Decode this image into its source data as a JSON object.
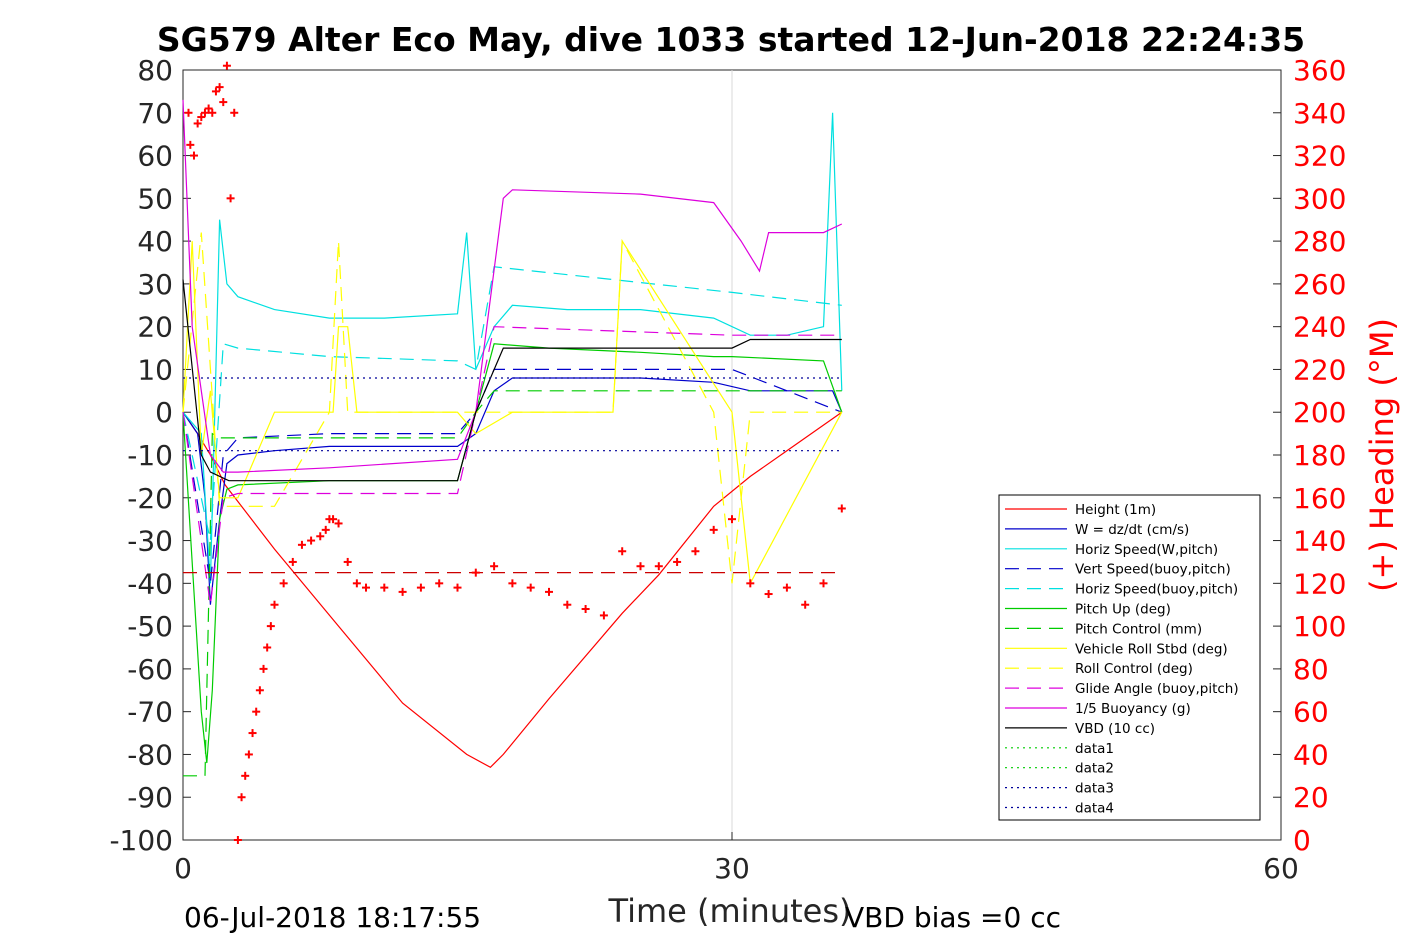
{
  "chart_data": {
    "type": "line",
    "title": "SG579 Alter Eco May, dive 1033 started 12-Jun-2018 22:24:35",
    "xlabel": "Time (minutes)",
    "ylabel_right": "(+) Heading (°M)",
    "footer_left": "06-Jul-2018 18:17:55",
    "footer_right": "VBD bias =0 cc",
    "xlim": [
      0,
      60
    ],
    "ylim_left": [
      -100,
      80
    ],
    "ylim_right": [
      0,
      360
    ],
    "x_ticks": [
      0,
      30,
      60
    ],
    "y_ticks_left": [
      80,
      70,
      60,
      50,
      40,
      30,
      20,
      10,
      0,
      -10,
      -20,
      -30,
      -40,
      -50,
      -60,
      -70,
      -80,
      -90,
      -100
    ],
    "y_ticks_right": [
      360,
      340,
      320,
      300,
      280,
      260,
      240,
      220,
      200,
      180,
      160,
      140,
      120,
      100,
      80,
      60,
      40,
      20,
      0
    ],
    "grid": "x-only at 30",
    "legend_position": "bottom-right",
    "series": [
      {
        "name": "Height (1m)",
        "color": "#ff0000",
        "style": "solid",
        "x": [
          0,
          0.8,
          1.5,
          2.3,
          5,
          8.5,
          12,
          15.5,
          16.8,
          17.5,
          20,
          23,
          24,
          26,
          29,
          31,
          33,
          36
        ],
        "y": [
          0,
          -5,
          -10,
          -17,
          -32,
          -50,
          -68,
          -80,
          -83,
          -80,
          -67,
          -52,
          -47,
          -38,
          -22,
          -15,
          -9,
          0
        ]
      },
      {
        "name": "W = dz/dt (cm/s)",
        "color": "#0000cc",
        "style": "solid",
        "x": [
          0,
          0.8,
          1.2,
          1.5,
          2.0,
          2.4,
          3,
          5,
          8,
          11,
          15,
          16,
          17,
          18,
          21,
          25,
          29,
          31,
          33,
          35.5,
          36
        ],
        "y": [
          0,
          -5,
          -20,
          -45,
          -25,
          -12,
          -10,
          -9,
          -8,
          -8,
          -8,
          -5,
          5,
          8,
          8,
          8,
          7,
          5,
          5,
          5,
          0
        ]
      },
      {
        "name": "Horiz Speed(W,pitch)",
        "color": "#00e0e0",
        "style": "solid",
        "x": [
          0,
          1.0,
          1.5,
          1.8,
          2.0,
          2.4,
          3,
          5,
          8,
          11,
          15,
          15.5,
          16,
          17,
          18,
          21,
          25,
          29,
          31,
          33,
          35,
          35.5,
          36
        ],
        "y": [
          0,
          -5,
          -40,
          10,
          45,
          30,
          27,
          24,
          22,
          22,
          23,
          42,
          10,
          20,
          25,
          24,
          24,
          22,
          18,
          18,
          20,
          70,
          5
        ]
      },
      {
        "name": "Vert Speed(buoy,pitch)",
        "color": "#0000cc",
        "style": "dash",
        "x": [
          0,
          1.5,
          2.2,
          3,
          8,
          15,
          16,
          17,
          30,
          36
        ],
        "y": [
          0,
          -40,
          -10,
          -6,
          -5,
          -5,
          0,
          10,
          10,
          0
        ]
      },
      {
        "name": "Horiz Speed(buoy,pitch)",
        "color": "#00e0e0",
        "style": "dash",
        "x": [
          0,
          1.5,
          2.2,
          3,
          8,
          15,
          16,
          17,
          30,
          36
        ],
        "y": [
          0,
          -30,
          16,
          15,
          13,
          12,
          10,
          34,
          28,
          25
        ]
      },
      {
        "name": "Pitch Up (deg)",
        "color": "#00cc00",
        "style": "solid",
        "x": [
          0,
          1,
          1.3,
          1.6,
          2.0,
          2.4,
          3,
          8,
          15,
          16,
          17,
          20,
          25,
          29,
          30,
          35,
          36
        ],
        "y": [
          0,
          -70,
          -82,
          -65,
          -25,
          -18,
          -17,
          -16,
          -16,
          0,
          16,
          15,
          14,
          13,
          13,
          12,
          0
        ]
      },
      {
        "name": "Pitch Control (mm)",
        "color": "#00cc00",
        "style": "dash",
        "x": [
          0,
          1.2,
          1.6,
          2.0,
          3,
          8,
          15,
          16,
          17,
          30,
          36
        ],
        "y": [
          -85,
          -85,
          -5,
          -6,
          -6,
          -6,
          -6,
          0,
          5,
          5,
          5
        ]
      },
      {
        "name": "Vehicle Roll Stbd (deg)",
        "color": "#ffff00",
        "style": "solid",
        "x": [
          0,
          0.5,
          1.0,
          1.5,
          2.0,
          3,
          5,
          8.2,
          8.5,
          9,
          9.5,
          15,
          16,
          18,
          23.5,
          24,
          30,
          31,
          36
        ],
        "y": [
          0,
          40,
          -10,
          5,
          -20,
          -20,
          0,
          0,
          20,
          20,
          0,
          0,
          -5,
          0,
          0,
          40,
          0,
          -40,
          0
        ]
      },
      {
        "name": "Roll Control (deg)",
        "color": "#ffff00",
        "style": "dash",
        "x": [
          0,
          1.0,
          2.0,
          5,
          8,
          8.5,
          9,
          9.3,
          16,
          18,
          23.5,
          24,
          29,
          30,
          31,
          36
        ],
        "y": [
          0,
          42,
          -22,
          -22,
          0,
          40,
          0,
          0,
          0,
          0,
          0,
          40,
          0,
          -40,
          0,
          0
        ]
      },
      {
        "name": "Glide Angle (buoy,pitch)",
        "color": "#dd00dd",
        "style": "dash",
        "x": [
          0,
          1.5,
          2.2,
          3,
          8,
          15,
          16,
          17,
          30,
          36
        ],
        "y": [
          0,
          -45,
          -20,
          -19,
          -19,
          -19,
          0,
          20,
          18,
          18
        ]
      },
      {
        "name": "1/5 Buoyancy (g)",
        "color": "#dd00dd",
        "style": "solid",
        "x": [
          0,
          0.5,
          1.5,
          2.2,
          3,
          8,
          15,
          16,
          17.5,
          18,
          25,
          29,
          30.5,
          31.5,
          32,
          35,
          36
        ],
        "y": [
          73,
          20,
          -10,
          -14,
          -14,
          -13,
          -11,
          0,
          50,
          52,
          51,
          49,
          40,
          33,
          42,
          42,
          44
        ]
      },
      {
        "name": "VBD (10 cc)",
        "color": "#000000",
        "style": "solid",
        "x": [
          0,
          1.0,
          1.5,
          2.5,
          15,
          16,
          17.5,
          18,
          30,
          31,
          36
        ],
        "y": [
          31,
          -10,
          -14,
          -16,
          -16,
          0,
          15,
          15,
          15,
          17,
          17
        ]
      },
      {
        "name": "data1",
        "color": "#00cc00",
        "style": "dot",
        "x": [],
        "y": []
      },
      {
        "name": "data2",
        "color": "#00cc00",
        "style": "dot",
        "x": [],
        "y": []
      },
      {
        "name": "data3",
        "color": "#000099",
        "style": "dot",
        "x": [
          0,
          36
        ],
        "y": [
          8,
          8
        ]
      },
      {
        "name": "data4",
        "color": "#000099",
        "style": "dot",
        "x": [
          0,
          36
        ],
        "y": [
          -9,
          -9
        ]
      }
    ],
    "heading_series": {
      "color": "#ff0000",
      "marker": "+",
      "axis": "right",
      "x": [
        0.3,
        0.4,
        0.6,
        0.8,
        1.0,
        1.2,
        1.4,
        1.6,
        1.8,
        2.0,
        2.2,
        2.4,
        2.6,
        2.8,
        3.0,
        3.2,
        3.4,
        3.6,
        3.8,
        4.0,
        4.2,
        4.4,
        4.6,
        4.8,
        5.0,
        5.5,
        6,
        6.5,
        7,
        7.5,
        7.8,
        8.0,
        8.2,
        8.5,
        9,
        9.5,
        10,
        11,
        12,
        13,
        14,
        15,
        16,
        17,
        18,
        19,
        20,
        21,
        22,
        23,
        24,
        25,
        26,
        27,
        28,
        29,
        30,
        31,
        32,
        33,
        34,
        35,
        36
      ],
      "y": [
        340,
        325,
        320,
        335,
        338,
        340,
        342,
        340,
        350,
        352,
        345,
        362,
        300,
        340,
        0,
        20,
        30,
        40,
        50,
        60,
        70,
        80,
        90,
        100,
        110,
        120,
        130,
        138,
        140,
        142,
        145,
        150,
        150,
        148,
        130,
        120,
        118,
        118,
        116,
        118,
        120,
        118,
        125,
        128,
        120,
        118,
        116,
        110,
        108,
        105,
        135,
        128,
        128,
        130,
        135,
        145,
        150,
        120,
        115,
        118,
        110,
        120,
        155
      ]
    },
    "heading_reference": {
      "value": 125,
      "color": "#cc0000",
      "style": "dash"
    }
  }
}
